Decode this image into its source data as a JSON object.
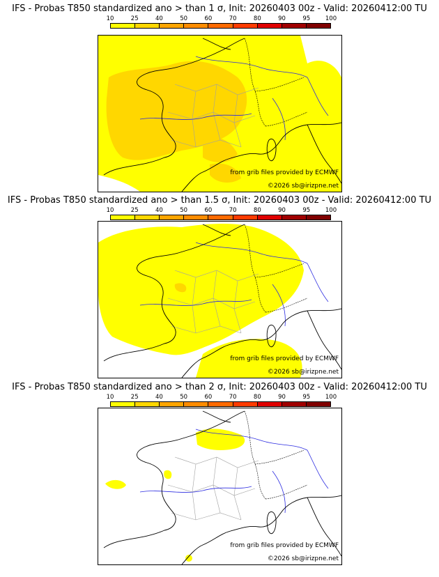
{
  "legend": {
    "ticks": [
      "10",
      "25",
      "40",
      "50",
      "60",
      "70",
      "80",
      "90",
      "95",
      "100"
    ],
    "colors": [
      "#ffff00",
      "#ffd700",
      "#ffa500",
      "#ff8c00",
      "#ff6a00",
      "#ff3b00",
      "#e00000",
      "#a00000",
      "#800000"
    ]
  },
  "panels": [
    {
      "title": "IFS - Probas T850  standardized ano > than 1 σ, Init: 20260403 00z - Valid: 20260412:00 TU",
      "coverage": "high",
      "source": "from grib files provided by ECMWF",
      "copyright": "©2026 sb@irizpne.net"
    },
    {
      "title": "IFS - Probas T850  standardized ano > than 1.5 σ, Init: 20260403 00z - Valid: 20260412:00 TU",
      "coverage": "medium",
      "source": "from grib files provided by ECMWF",
      "copyright": "©2026 sb@irizpne.net"
    },
    {
      "title": "IFS - Probas T850  standardized ano > than 2 σ, Init: 20260403 00z - Valid: 20260412:00 TU",
      "coverage": "low",
      "source": "from grib files provided by ECMWF",
      "copyright": "©2026 sb@irizpne.net"
    }
  ]
}
